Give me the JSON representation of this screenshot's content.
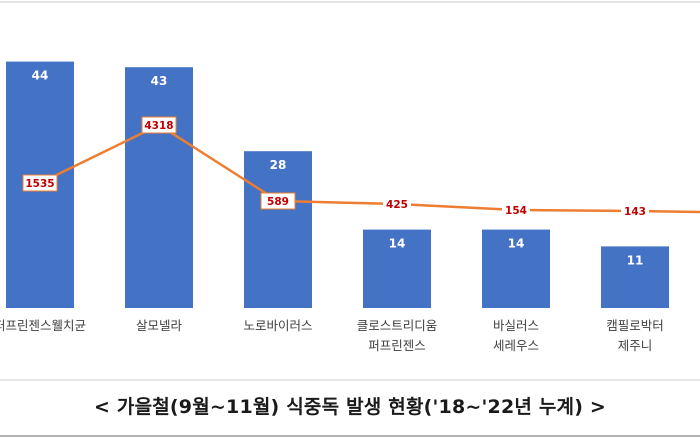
{
  "chart_data": {
    "type": "bar",
    "categories": [
      [
        "퍼프린젠스웰치균"
      ],
      [
        "살모넬라"
      ],
      [
        "노로바이러스"
      ],
      [
        "클로스트리디움",
        "퍼프린젠스"
      ],
      [
        "바실러스",
        "세레우스"
      ],
      [
        "캠필로박터",
        "제주니"
      ]
    ],
    "series": [
      {
        "type": "bar",
        "values": [
          44,
          43,
          28,
          14,
          14,
          11
        ]
      },
      {
        "type": "line",
        "values": [
          1535,
          4318,
          589,
          425,
          154,
          143
        ]
      }
    ],
    "line_trailing_value_offscreen": true,
    "colors": {
      "bar": "#4472c4",
      "line": "#ed7d31",
      "line_label": "#c00000",
      "bar_label": "#ffffff"
    },
    "title": "< 가을철(9월~11월) 식중독 발생 현황('18~'22년 누계) >",
    "grid": false,
    "legend": "none"
  }
}
